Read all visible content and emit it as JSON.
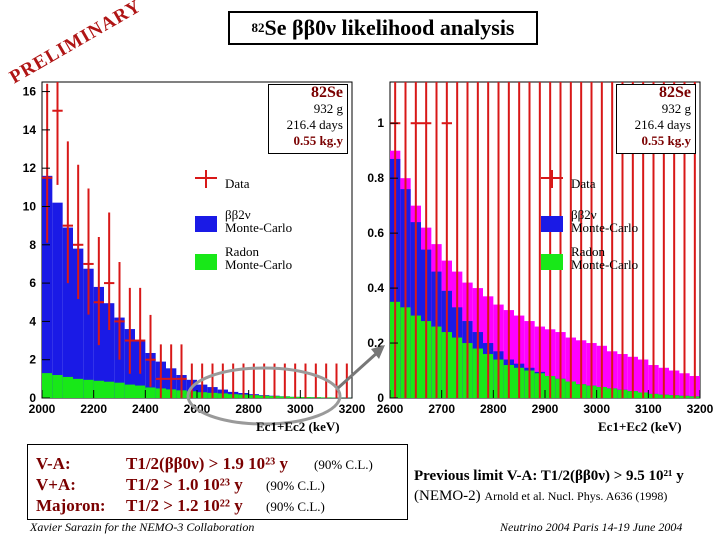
{
  "title": {
    "pre": "82",
    "main": "Se  ββ0ν likelihood analysis"
  },
  "stamp": "PRELIMINARY",
  "colors": {
    "data": "#d81818",
    "mc2nu": "#1a1ae6",
    "radon": "#18e818",
    "total": "#ff00ff",
    "stamp": "#b01515",
    "result_text": "#7a0000",
    "oval": "#9a9a9a"
  },
  "left_plot": {
    "info": {
      "isotope": "82Se",
      "mass": "932 g",
      "time": "216.4 days",
      "exposure": "0.55 kg.y"
    },
    "legend": {
      "data": "Data",
      "mc2nu_1": "ββ2ν",
      "mc2nu_2": "Monte-Carlo",
      "radon_1": "Radon",
      "radon_2": "Monte-Carlo"
    },
    "xlabel": "Ec1+Ec2 (keV)",
    "x_ticks": [
      "2000",
      "2200",
      "2400",
      "2600",
      "2800",
      "3000",
      "3200"
    ],
    "y_ticks": [
      "0",
      "2",
      "4",
      "6",
      "8",
      "10",
      "12",
      "14",
      "16"
    ]
  },
  "right_plot": {
    "info": {
      "isotope": "82Se",
      "mass": "932 g",
      "time": "216.4 days",
      "exposure": "0.55 kg.y"
    },
    "legend": {
      "data": "Data",
      "mc2nu_1": "ββ2ν",
      "mc2nu_2": "Monte-Carlo",
      "radon_1": "Radon",
      "radon_2": "Monte-Carlo"
    },
    "xlabel": "Ec1+Ec2 (keV)",
    "x_ticks": [
      "2600",
      "2700",
      "2800",
      "2900",
      "3000",
      "3100",
      "3200"
    ],
    "y_ticks": [
      "0",
      "0.2",
      "0.4",
      "0.6",
      "0.8",
      "1"
    ]
  },
  "chart_data": [
    {
      "type": "bar",
      "xlabel": "Ec1+Ec2 (keV)",
      "xlim": [
        2000,
        3200
      ],
      "ylim": [
        0,
        16.5
      ],
      "bin_width": 40,
      "x": [
        2000,
        2040,
        2080,
        2120,
        2160,
        2200,
        2240,
        2280,
        2320,
        2360,
        2400,
        2440,
        2480,
        2520,
        2560,
        2600,
        2640,
        2680,
        2720,
        2760,
        2800,
        2840,
        2880,
        2920,
        2960,
        3000,
        3040,
        3080,
        3120,
        3160
      ],
      "series": [
        {
          "name": "Radon Monte-Carlo",
          "values": [
            1.3,
            1.2,
            1.1,
            1.0,
            0.95,
            0.9,
            0.85,
            0.8,
            0.7,
            0.65,
            0.55,
            0.5,
            0.45,
            0.4,
            0.35,
            0.3,
            0.27,
            0.24,
            0.2,
            0.18,
            0.15,
            0.12,
            0.1,
            0.08,
            0.06,
            0.05,
            0.04,
            0.03,
            0.02,
            0.01
          ]
        },
        {
          "name": "ββ2ν Monte-Carlo",
          "values": [
            10.3,
            9.0,
            7.8,
            6.8,
            5.8,
            4.9,
            4.1,
            3.4,
            2.9,
            2.3,
            1.8,
            1.4,
            1.1,
            0.8,
            0.6,
            0.4,
            0.3,
            0.2,
            0.12,
            0.08,
            0.05,
            0.03,
            0.02,
            0.01,
            0,
            0,
            0,
            0,
            0,
            0
          ]
        },
        {
          "name": "Data",
          "values": [
            11.5,
            15,
            9,
            8,
            7,
            5,
            6,
            4,
            3,
            3,
            2,
            1,
            1,
            1,
            0,
            0,
            0,
            0,
            0,
            0,
            0,
            0,
            0,
            0,
            0,
            0,
            0,
            0,
            0,
            0
          ]
        }
      ]
    },
    {
      "type": "bar",
      "xlabel": "Ec1+Ec2 (keV)",
      "xlim": [
        2600,
        3200
      ],
      "ylim": [
        0,
        1.15
      ],
      "bin_width": 20,
      "x": [
        2600,
        2620,
        2640,
        2660,
        2680,
        2700,
        2720,
        2740,
        2760,
        2780,
        2800,
        2820,
        2840,
        2860,
        2880,
        2900,
        2920,
        2940,
        2960,
        2980,
        3000,
        3020,
        3040,
        3060,
        3080,
        3100,
        3120,
        3140,
        3160,
        3180
      ],
      "series": [
        {
          "name": "Radon Monte-Carlo",
          "values": [
            0.35,
            0.33,
            0.3,
            0.28,
            0.26,
            0.24,
            0.22,
            0.2,
            0.18,
            0.16,
            0.14,
            0.12,
            0.11,
            0.1,
            0.09,
            0.08,
            0.07,
            0.06,
            0.05,
            0.045,
            0.04,
            0.035,
            0.03,
            0.025,
            0.02,
            0.015,
            0.012,
            0.01,
            0.008,
            0.006
          ]
        },
        {
          "name": "ββ2ν Monte-Carlo",
          "values": [
            0.52,
            0.43,
            0.34,
            0.26,
            0.2,
            0.15,
            0.11,
            0.08,
            0.06,
            0.04,
            0.03,
            0.02,
            0.015,
            0.01,
            0.005,
            0,
            0,
            0,
            0,
            0,
            0,
            0,
            0,
            0,
            0,
            0,
            0,
            0,
            0,
            0
          ]
        },
        {
          "name": "Total (magenta)",
          "values": [
            0.9,
            0.8,
            0.7,
            0.62,
            0.56,
            0.5,
            0.46,
            0.42,
            0.4,
            0.37,
            0.34,
            0.32,
            0.3,
            0.28,
            0.26,
            0.25,
            0.24,
            0.22,
            0.21,
            0.2,
            0.19,
            0.17,
            0.16,
            0.15,
            0.14,
            0.12,
            0.11,
            0.1,
            0.09,
            0.08
          ]
        },
        {
          "name": "Data",
          "values": [
            1,
            0,
            1,
            1,
            0,
            1,
            0,
            0,
            0,
            0,
            0,
            0,
            0,
            0,
            0,
            0,
            0,
            0,
            0,
            0,
            0,
            0,
            0,
            0,
            0,
            0,
            0,
            0,
            0,
            0
          ]
        }
      ]
    }
  ],
  "results": {
    "va_label": "V-A:",
    "va_value": "T1/2(ββ0ν) >  1.9 10²³ y",
    "va_cl": "(90% C.L.)",
    "vpa_label": "V+A:",
    "vpa_value": "T1/2 >  1.0 10²³ y",
    "vpa_cl": "(90% C.L.)",
    "maj_label": "Majoron:",
    "maj_value": "T1/2 >  1.2 10²² y",
    "maj_cl": "(90% C.L.)"
  },
  "previous": {
    "line1": "Previous limit V-A:   T1/2(ββ0ν) > 9.5 10²¹ y",
    "line2_a": "(NEMO-2) ",
    "line2_b": "Arnold et al. Nucl. Phys. A636 (1998)"
  },
  "footer": {
    "left": "Xavier Sarazin for the NEMO-3 Collaboration",
    "right": "Neutrino 2004 Paris 14-19 June 2004"
  }
}
